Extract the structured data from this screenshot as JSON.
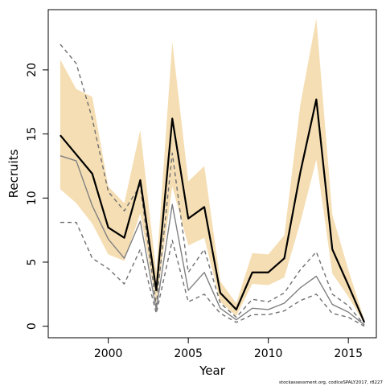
{
  "chart_data": {
    "type": "line",
    "xlabel": "Year",
    "ylabel": "Recruits",
    "footnote": "stockassessment.org, codIceSPALY2017, r8227",
    "xlim": [
      1996.25,
      2016.75
    ],
    "ylim": [
      -0.9,
      24.7
    ],
    "x_ticks": [
      2000,
      2005,
      2010,
      2015
    ],
    "y_ticks": [
      0,
      5,
      10,
      15,
      20
    ],
    "grid": false,
    "colors": {
      "band": "#f5deb3",
      "main": "#000000",
      "secondary": "#808080",
      "secondary_dashed": "#707070",
      "frame": "#000000"
    },
    "x": [
      1997,
      1998,
      1999,
      2000,
      2001,
      2002,
      2003,
      2004,
      2005,
      2006,
      2007,
      2008,
      2009,
      2010,
      2011,
      2012,
      2013,
      2014,
      2015,
      2016
    ],
    "series": [
      {
        "style": "band",
        "lower": [
          10.7,
          9.6,
          8.0,
          5.6,
          5.1,
          8.8,
          1.8,
          10.9,
          6.3,
          6.9,
          1.9,
          0.8,
          3.3,
          3.2,
          3.8,
          8.1,
          13.0,
          4.1,
          2.3,
          0.2
        ],
        "upper": [
          20.8,
          18.5,
          17.9,
          10.9,
          9.6,
          15.3,
          4.2,
          22.2,
          11.3,
          12.5,
          3.5,
          1.8,
          5.7,
          5.6,
          7.1,
          17.3,
          24.0,
          8.7,
          4.4,
          0.5
        ]
      },
      {
        "style": "main",
        "values": [
          14.9,
          13.4,
          11.9,
          7.7,
          6.9,
          11.4,
          2.8,
          16.2,
          8.4,
          9.3,
          2.6,
          1.3,
          4.2,
          4.2,
          5.3,
          12.0,
          17.7,
          6.0,
          3.2,
          0.3
        ]
      },
      {
        "style": "secondary",
        "values": [
          13.3,
          12.9,
          9.4,
          6.8,
          5.3,
          8.2,
          1.3,
          9.5,
          2.8,
          4.2,
          1.4,
          0.5,
          1.4,
          1.3,
          1.8,
          3.0,
          3.9,
          1.7,
          1.1,
          0.1
        ]
      },
      {
        "style": "secondary-dashed",
        "values": [
          22.0,
          20.5,
          16.2,
          10.5,
          9.0,
          11.0,
          1.6,
          13.5,
          4.2,
          6.0,
          1.8,
          0.7,
          2.1,
          1.9,
          2.6,
          4.4,
          5.8,
          2.5,
          1.6,
          0.1
        ]
      },
      {
        "style": "secondary-dashed",
        "values": [
          8.1,
          8.1,
          5.3,
          4.5,
          3.3,
          6.0,
          1.0,
          6.7,
          1.9,
          2.5,
          1.0,
          0.3,
          0.9,
          0.9,
          1.2,
          2.0,
          2.5,
          1.0,
          0.7,
          0.0
        ]
      }
    ]
  }
}
